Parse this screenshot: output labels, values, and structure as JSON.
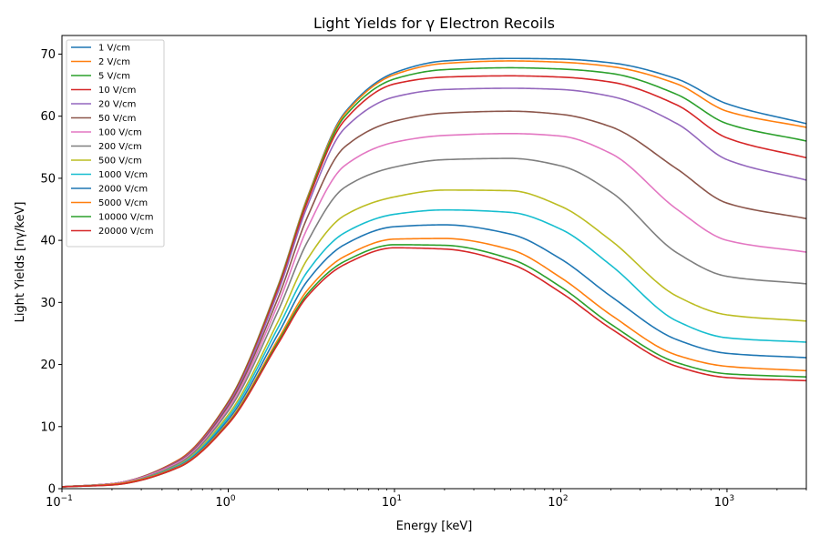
{
  "chart_data": {
    "type": "line",
    "title": "Light Yields for γ Electron Recoils",
    "xlabel": "Energy [keV]",
    "ylabel": "Light Yields [nγ/keV]",
    "xscale": "log",
    "xlim": [
      0.1,
      3000
    ],
    "ylim": [
      0,
      73
    ],
    "grid": false,
    "legend_position": "top-left",
    "x_ticks": [
      {
        "value": 0.1,
        "base": "10",
        "exp": "−1"
      },
      {
        "value": 1,
        "base": "10",
        "exp": "0"
      },
      {
        "value": 10,
        "base": "10",
        "exp": "1"
      },
      {
        "value": 100,
        "base": "10",
        "exp": "2"
      },
      {
        "value": 1000,
        "base": "10",
        "exp": "3"
      }
    ],
    "y_ticks": [
      {
        "value": 0,
        "label": "0"
      },
      {
        "value": 10,
        "label": "10"
      },
      {
        "value": 20,
        "label": "20"
      },
      {
        "value": 30,
        "label": "30"
      },
      {
        "value": 40,
        "label": "40"
      },
      {
        "value": 50,
        "label": "50"
      },
      {
        "value": 60,
        "label": "60"
      },
      {
        "value": 70,
        "label": "70"
      }
    ],
    "x": [
      0.1,
      0.2,
      0.5,
      1,
      2,
      3,
      5,
      10,
      20,
      50,
      100,
      200,
      500,
      1000,
      3000
    ],
    "series": [
      {
        "name": "1 V/cm",
        "color": "#1f77b4",
        "values": [
          0.3,
          0.8,
          4.6,
          14.0,
          32.8,
          47.0,
          60.5,
          67.0,
          68.9,
          69.3,
          69.2,
          68.6,
          66.0,
          62.0,
          58.8
        ]
      },
      {
        "name": "2 V/cm",
        "color": "#ff7f0e",
        "values": [
          0.3,
          0.8,
          4.6,
          14.0,
          32.7,
          46.9,
          60.3,
          66.7,
          68.5,
          68.9,
          68.7,
          68.0,
          65.2,
          60.8,
          58.2
        ]
      },
      {
        "name": "5 V/cm",
        "color": "#2ca02c",
        "values": [
          0.3,
          0.8,
          4.5,
          13.9,
          32.5,
          46.6,
          59.9,
          66.0,
          67.5,
          67.8,
          67.6,
          66.9,
          63.5,
          58.8,
          56.0
        ]
      },
      {
        "name": "10 V/cm",
        "color": "#d62728",
        "values": [
          0.3,
          0.8,
          4.5,
          13.8,
          32.3,
          46.3,
          59.3,
          65.2,
          66.3,
          66.5,
          66.3,
          65.5,
          61.8,
          56.5,
          53.3
        ]
      },
      {
        "name": "20 V/cm",
        "color": "#9467bd",
        "values": [
          0.3,
          0.8,
          4.4,
          13.6,
          31.8,
          45.6,
          58.0,
          63.1,
          64.3,
          64.5,
          64.3,
          63.2,
          58.8,
          53.0,
          49.7
        ]
      },
      {
        "name": "50 V/cm",
        "color": "#8c564b",
        "values": [
          0.3,
          0.8,
          4.3,
          13.3,
          30.8,
          43.8,
          55.0,
          59.2,
          60.5,
          60.8,
          60.3,
          58.3,
          51.5,
          46.0,
          43.5
        ]
      },
      {
        "name": "100 V/cm",
        "color": "#e377c2",
        "values": [
          0.3,
          0.8,
          4.2,
          12.9,
          29.8,
          42.0,
          52.0,
          55.8,
          56.9,
          57.2,
          56.8,
          54.0,
          45.0,
          40.0,
          38.1
        ]
      },
      {
        "name": "200 V/cm",
        "color": "#7f7f7f",
        "values": [
          0.3,
          0.7,
          4.0,
          12.5,
          28.7,
          39.8,
          48.5,
          51.8,
          53.0,
          53.2,
          52.0,
          47.8,
          38.0,
          34.2,
          33.0
        ]
      },
      {
        "name": "500 V/cm",
        "color": "#bcbd22",
        "values": [
          0.3,
          0.7,
          3.8,
          11.9,
          27.0,
          37.0,
          44.0,
          47.0,
          48.1,
          48.0,
          45.5,
          40.0,
          31.0,
          28.0,
          27.0
        ]
      },
      {
        "name": "1000 V/cm",
        "color": "#17becf",
        "values": [
          0.3,
          0.7,
          3.7,
          11.5,
          26.0,
          35.0,
          41.2,
          44.2,
          44.9,
          44.5,
          41.8,
          36.0,
          27.0,
          24.3,
          23.6
        ]
      },
      {
        "name": "2000 V/cm",
        "color": "#1f77b4",
        "values": [
          0.3,
          0.7,
          3.6,
          11.1,
          25.0,
          33.5,
          39.3,
          42.2,
          42.5,
          41.0,
          37.0,
          31.0,
          24.0,
          21.8,
          21.1
        ]
      },
      {
        "name": "5000 V/cm",
        "color": "#ff7f0e",
        "values": [
          0.3,
          0.7,
          3.5,
          10.7,
          24.1,
          32.0,
          37.4,
          40.2,
          40.3,
          38.5,
          34.0,
          28.0,
          21.5,
          19.7,
          19.0
        ]
      },
      {
        "name": "10000 V/cm",
        "color": "#2ca02c",
        "values": [
          0.3,
          0.6,
          3.4,
          10.5,
          23.7,
          31.4,
          36.6,
          39.3,
          39.2,
          37.0,
          32.5,
          26.5,
          20.3,
          18.5,
          18.0
        ]
      },
      {
        "name": "20000 V/cm",
        "color": "#d62728",
        "values": [
          0.3,
          0.6,
          3.4,
          10.4,
          23.4,
          31.0,
          36.1,
          38.8,
          38.6,
          36.2,
          31.6,
          25.8,
          19.7,
          17.9,
          17.4
        ]
      }
    ]
  }
}
